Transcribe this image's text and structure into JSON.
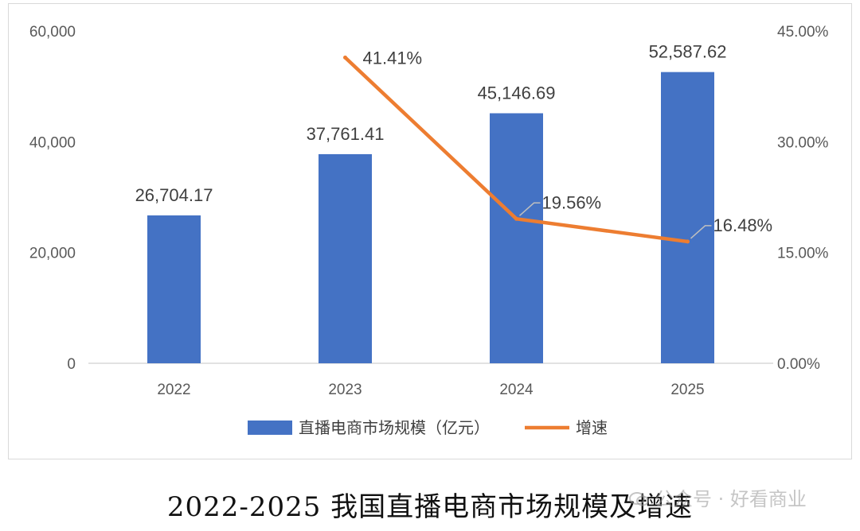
{
  "chart_data": {
    "type": "bar+line",
    "categories": [
      "2022",
      "2023",
      "2024",
      "2025"
    ],
    "series": [
      {
        "name": "直播电商市场规模（亿元）",
        "type": "bar",
        "axis": "left",
        "color": "#4472C4",
        "values": [
          26704.17,
          37761.41,
          45146.69,
          52587.62
        ],
        "labels": [
          "26,704.17",
          "37,761.41",
          "45,146.69",
          "52,587.62"
        ]
      },
      {
        "name": "增速",
        "type": "line",
        "axis": "right",
        "color": "#ED7D31",
        "values": [
          null,
          41.41,
          19.56,
          16.48
        ],
        "labels": [
          "",
          "41.41%",
          "19.56%",
          "16.48%"
        ]
      }
    ],
    "y_left": {
      "min": 0,
      "max": 60000,
      "ticks": [
        "0",
        "20,000",
        "40,000",
        "60,000"
      ],
      "tick_values": [
        0,
        20000,
        40000,
        60000
      ]
    },
    "y_right": {
      "min": 0,
      "max": 45,
      "ticks": [
        "0.00%",
        "15.00%",
        "30.00%",
        "45.00%"
      ],
      "tick_values": [
        0,
        15,
        30,
        45
      ]
    },
    "legend_position": "bottom",
    "grid": false
  },
  "caption": "2022-2025 我国直播电商市场规模及增速",
  "watermark": "公众号 · 好看商业"
}
